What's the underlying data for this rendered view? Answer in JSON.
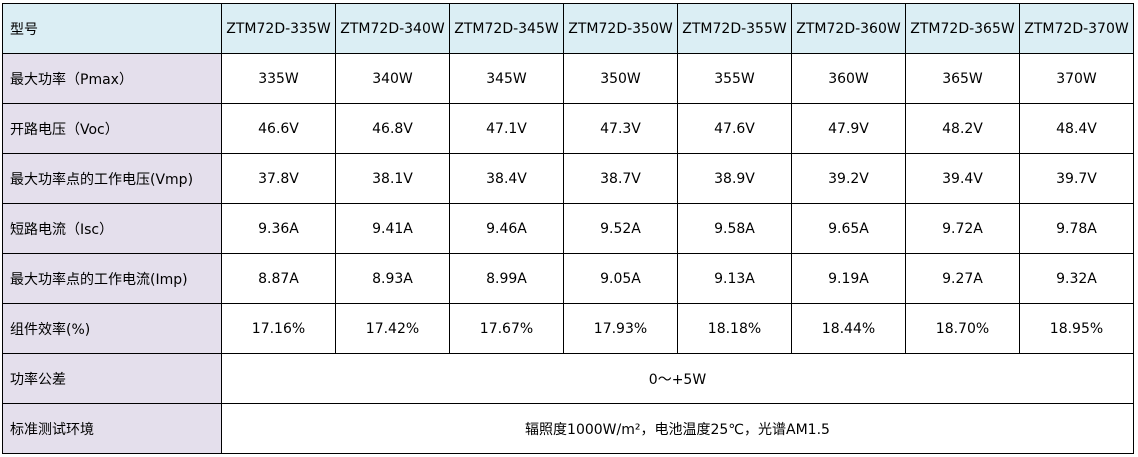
{
  "table": {
    "header": [
      "型号",
      "ZTM72D-335W",
      "ZTM72D-340W",
      "ZTM72D-345W",
      "ZTM72D-350W",
      "ZTM72D-355W",
      "ZTM72D-360W",
      "ZTM72D-365W",
      "ZTM72D-370W"
    ],
    "rows": [
      [
        "最大功率（Pmax）",
        "335W",
        "340W",
        "345W",
        "350W",
        "355W",
        "360W",
        "365W",
        "370W"
      ],
      [
        "开路电压（Voc）",
        "46.6V",
        "46.8V",
        "47.1V",
        "47.3V",
        "47.6V",
        "47.9V",
        "48.2V",
        "48.4V"
      ],
      [
        "最大功率点的工作电压(Vmp)",
        "37.8V",
        "38.1V",
        "38.4V",
        "38.7V",
        "38.9V",
        "39.2V",
        "39.4V",
        "39.7V"
      ],
      [
        "短路电流（Isc）",
        "9.36A",
        "9.41A",
        "9.46A",
        "9.52A",
        "9.58A",
        "9.65A",
        "9.72A",
        "9.78A"
      ],
      [
        "最大功率点的工作电流(Imp)",
        "8.87A",
        "8.93A",
        "8.99A",
        "9.05A",
        "9.13A",
        "9.19A",
        "9.27A",
        "9.32A"
      ],
      [
        "组件效率(%)",
        "17.16%",
        "17.42%",
        "17.67%",
        "17.93%",
        "18.18%",
        "18.44%",
        "18.70%",
        "18.95%"
      ],
      [
        "功率公差",
        "0～+5W"
      ],
      [
        "标准测试环境",
        "辐照度1000W/m²，电池温度25℃，光谱AM1.5"
      ]
    ]
  }
}
